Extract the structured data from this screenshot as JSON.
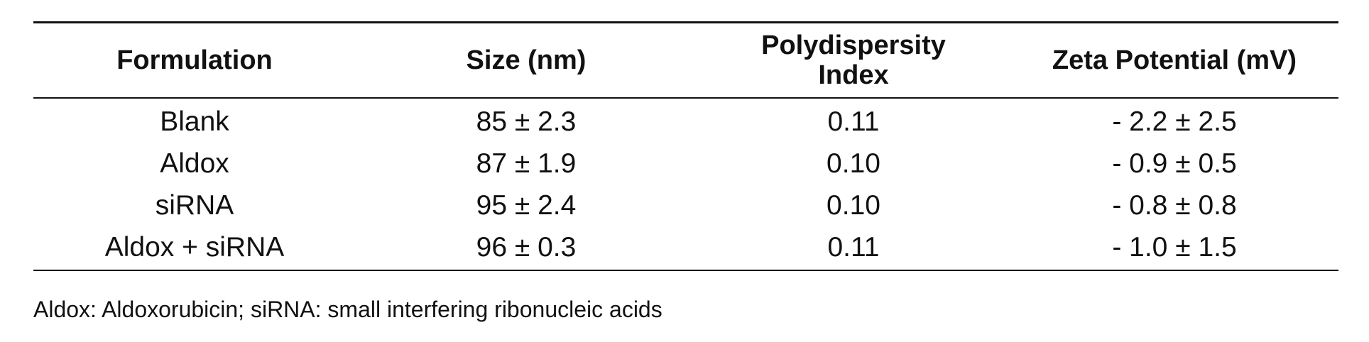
{
  "table": {
    "headers": [
      "Formulation",
      "Size (nm)",
      "Polydispersity Index",
      "Zeta Potential (mV)"
    ],
    "rows": [
      [
        "Blank",
        "85 ± 2.3",
        "0.11",
        "- 2.2 ± 2.5"
      ],
      [
        "Aldox",
        "87 ± 1.9",
        "0.10",
        "- 0.9 ± 0.5"
      ],
      [
        "siRNA",
        "95 ± 2.4",
        "0.10",
        "- 0.8 ± 0.8"
      ],
      [
        "Aldox + siRNA",
        "96 ± 0.3",
        "0.11",
        "- 1.0 ± 1.5"
      ]
    ]
  },
  "footnote": "Aldox: Aldoxorubicin; siRNA: small interfering ribonucleic acids"
}
